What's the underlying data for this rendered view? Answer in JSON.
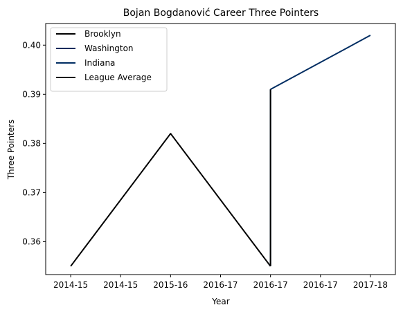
{
  "chart_data": {
    "type": "line",
    "title": "Bojan Bogdanović Career Three Pointers",
    "xlabel": "Year",
    "ylabel": "Three Pointers",
    "x_tick_labels": [
      "2014-15",
      "2014-15",
      "2015-16",
      "2016-17",
      "2016-17",
      "2016-17",
      "2017-18"
    ],
    "x_range": [
      -0.25,
      3.25
    ],
    "ylim": [
      0.3533,
      0.4044
    ],
    "y_ticks": [
      0.36,
      0.37,
      0.38,
      0.39,
      0.4
    ],
    "y_tick_labels": [
      "0.36",
      "0.37",
      "0.38",
      "0.39",
      "0.40"
    ],
    "grid": false,
    "legend_placement": "top-left",
    "series": [
      {
        "name": "Brooklyn",
        "color": "#000000",
        "x": [
          0,
          1,
          2
        ],
        "y": [
          0.355,
          0.382,
          0.355
        ]
      },
      {
        "name": "Washington",
        "color": "#002b5c",
        "x": [
          2,
          2
        ],
        "y": [
          0.355,
          0.391
        ]
      },
      {
        "name": "Indiana",
        "color": "#002d62",
        "x": [
          2,
          3
        ],
        "y": [
          0.391,
          0.402
        ]
      },
      {
        "name": "League Average",
        "color": "#000000",
        "x": [],
        "y": []
      }
    ],
    "connector_lines": [
      {
        "color": "#000000",
        "x": [
          2,
          2
        ],
        "y": [
          0.355,
          0.391
        ]
      }
    ]
  }
}
